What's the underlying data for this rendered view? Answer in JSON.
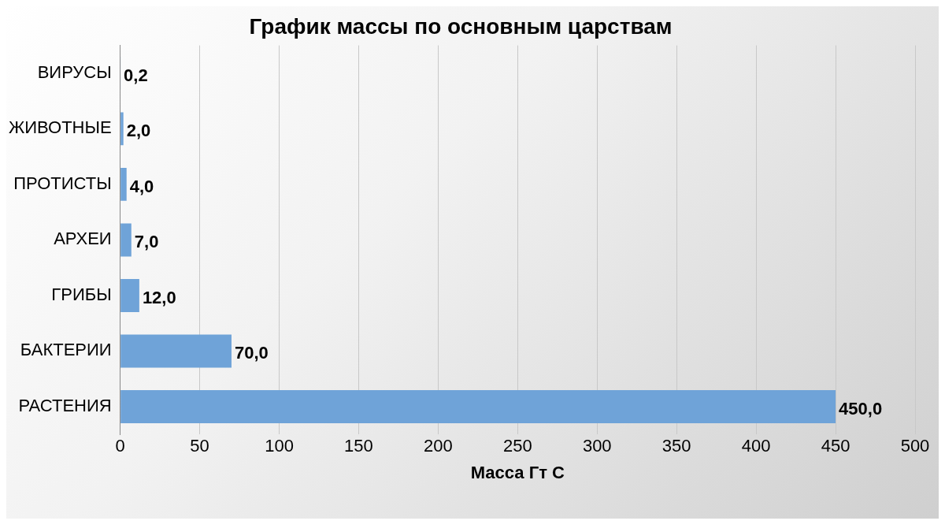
{
  "chart_data": {
    "type": "bar",
    "orientation": "horizontal",
    "title": "График массы по основным царствам",
    "xlabel": "Масса Гт С",
    "categories": [
      "ВИРУСЫ",
      "ЖИВОТНЫЕ",
      "ПРОТИСТЫ",
      "АРХЕИ",
      "ГРИБЫ",
      "БАКТЕРИИ",
      "РАСТЕНИЯ"
    ],
    "values": [
      0.2,
      2,
      4,
      7,
      12,
      70,
      450
    ],
    "value_labels": [
      "0,2",
      "2,0",
      "4,0",
      "7,0",
      "12,0",
      "70,0",
      "450,0"
    ],
    "color": "#6fa3d8",
    "xlim": [
      0,
      500
    ],
    "xticks": [
      0,
      50,
      100,
      150,
      200,
      250,
      300,
      350,
      400,
      450,
      500
    ],
    "grid": "x",
    "legend": false
  }
}
